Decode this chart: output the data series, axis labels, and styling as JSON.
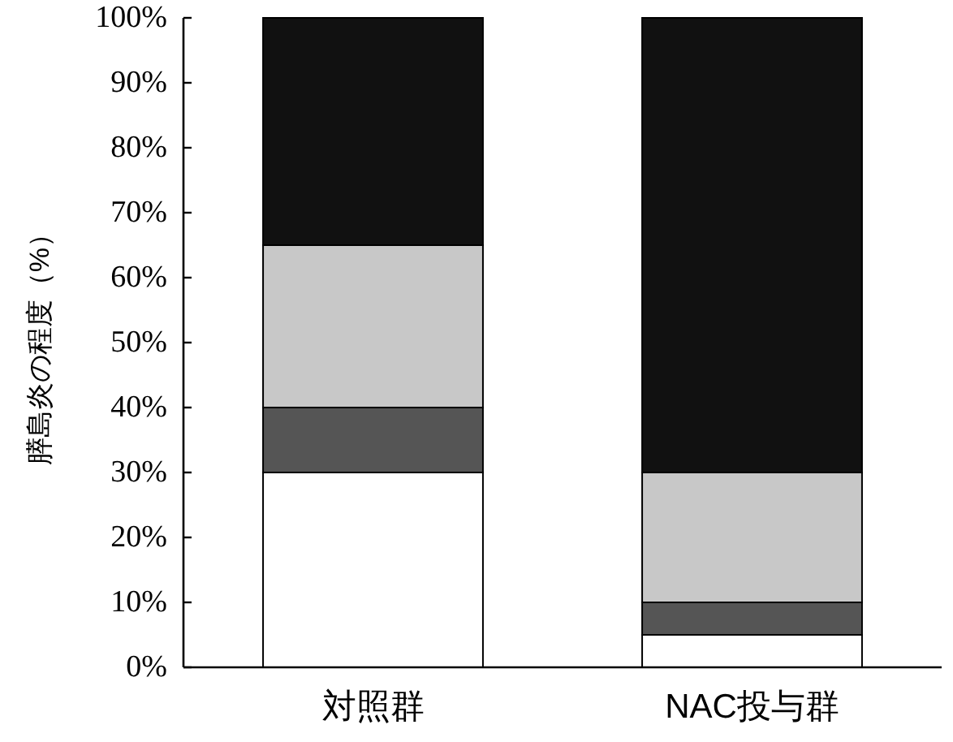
{
  "chart_data": {
    "type": "bar",
    "stacked": true,
    "ylabel": "膵島炎の程度（%）",
    "categories": [
      "対照群",
      "NAC投与群"
    ],
    "series": [
      {
        "color": "#ffffff",
        "values": [
          30,
          5
        ]
      },
      {
        "color": "#555555",
        "values": [
          10,
          5
        ]
      },
      {
        "color": "#c8c8c8",
        "values": [
          25,
          20
        ]
      },
      {
        "color": "#111111",
        "values": [
          35,
          70
        ]
      }
    ],
    "ylim": [
      0,
      100
    ],
    "yticks": [
      {
        "value": 0,
        "label": "0%"
      },
      {
        "value": 10,
        "label": "10%"
      },
      {
        "value": 20,
        "label": "20%"
      },
      {
        "value": 30,
        "label": "30%"
      },
      {
        "value": 40,
        "label": "40%"
      },
      {
        "value": 50,
        "label": "50%"
      },
      {
        "value": 60,
        "label": "60%"
      },
      {
        "value": 70,
        "label": "70%"
      },
      {
        "value": 80,
        "label": "80%"
      },
      {
        "value": 90,
        "label": "90%"
      },
      {
        "value": 100,
        "label": "100%"
      }
    ]
  }
}
